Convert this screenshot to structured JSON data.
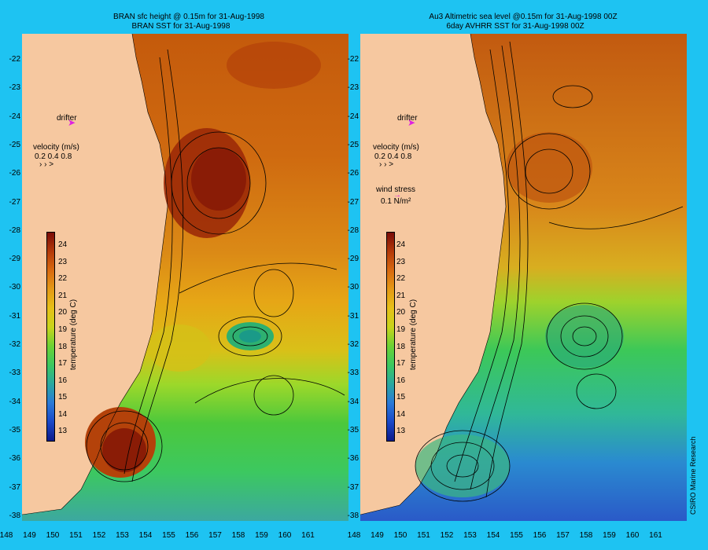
{
  "left_panel": {
    "title_line1": "BRAN sfc height @ 0.15m  for 31-Aug-1998",
    "title_line2": "BRAN SST for 31-Aug-1998",
    "drifter_label": "drifter",
    "velocity_label": "velocity (m/s)",
    "velocity_scale": "0.2 0.4 0.8",
    "colorbar_label": "temperature (deg C)"
  },
  "right_panel": {
    "title_line1": "Au3 Altimetric sea level  @0.15m  for 31-Aug-1998 00Z",
    "title_line2": "6day AVHRR SST for 31-Aug-1998 00Z",
    "drifter_label": "drifter",
    "velocity_label": "velocity (m/s)",
    "velocity_scale": "0.2 0.4 0.8",
    "wind_label": "wind stress",
    "wind_scale": "0.1 N/m²",
    "colorbar_label": "temperature (deg C)"
  },
  "credit": "CSIRO Marine Research",
  "axes": {
    "latitudes": [
      "-22",
      "-23",
      "-24",
      "-25",
      "-26",
      "-27",
      "-28",
      "-29",
      "-30",
      "-31",
      "-32",
      "-33",
      "-34",
      "-35",
      "-36",
      "-37",
      "-38"
    ],
    "longitudes": [
      "148",
      "149",
      "150",
      "151",
      "152",
      "153",
      "154",
      "155",
      "156",
      "157",
      "158",
      "159",
      "160",
      "161"
    ]
  },
  "colorbar": {
    "ticks": [
      "24",
      "23",
      "22",
      "21",
      "20",
      "19",
      "18",
      "17",
      "16",
      "15",
      "14",
      "13"
    ],
    "min": 12.5,
    "max": 24.8
  },
  "colors": {
    "background": "#1ec3f2",
    "land": "#f6c8a0",
    "drifter": "#e020e0"
  }
}
